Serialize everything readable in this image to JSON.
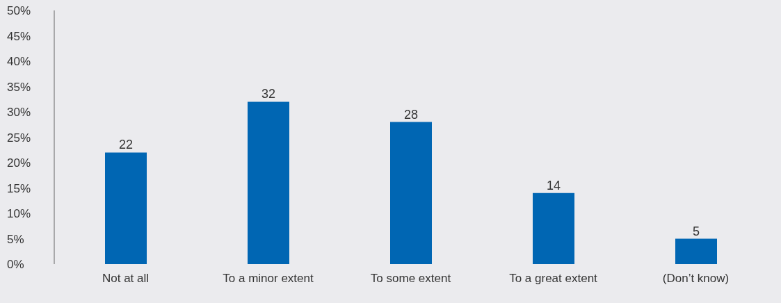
{
  "chart_data": {
    "type": "bar",
    "categories": [
      "Not at all",
      "To a minor extent",
      "To some extent",
      "To a great extent",
      "(Don’t know)"
    ],
    "values": [
      22,
      32,
      28,
      14,
      5
    ],
    "color": "#0066b3",
    "data_labels": true,
    "grid": false,
    "legend": false,
    "ylim": [
      0,
      50
    ],
    "yticks": [
      {
        "value": 0,
        "label": "0%"
      },
      {
        "value": 5,
        "label": "5%"
      },
      {
        "value": 10,
        "label": "10%"
      },
      {
        "value": 15,
        "label": "15%"
      },
      {
        "value": 20,
        "label": "20%"
      },
      {
        "value": 25,
        "label": "25%"
      },
      {
        "value": 30,
        "label": "30%"
      },
      {
        "value": 35,
        "label": "35%"
      },
      {
        "value": 40,
        "label": "40%"
      },
      {
        "value": 45,
        "label": "45%"
      },
      {
        "value": 50,
        "label": "50%"
      }
    ]
  }
}
